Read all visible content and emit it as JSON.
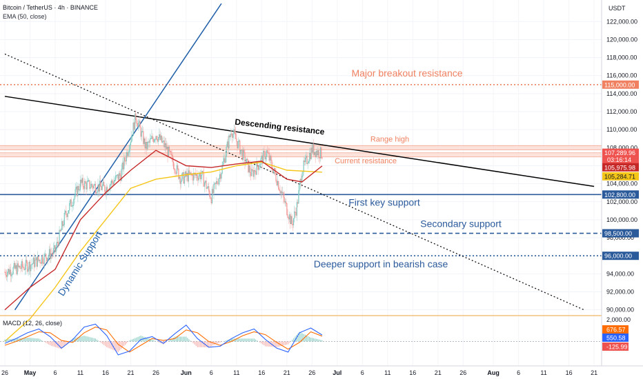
{
  "header": {
    "symbol_line": "Bitcoin / TetherUS · 4h · BINANCE",
    "indicator_line": "EMA (50, close)",
    "currency": "USDT"
  },
  "macd_label": "MACD (12, 26, close)",
  "colors": {
    "price_up": "#26a69a",
    "price_down": "#ef5350",
    "ema_fast": "#d32f2f",
    "ema_slow": "#f5c518",
    "resistance": "#f08060",
    "support": "#2b5a9b",
    "trend_blue": "#1f5fa8",
    "descending": "#000000",
    "macd_line": "#2962ff",
    "signal_line": "#ff6d00"
  },
  "chart_data": {
    "type": "line",
    "title": "Bitcoin / TetherUS · 4h · BINANCE",
    "y_unit": "USDT",
    "ylim": [
      89000,
      123500
    ],
    "y_ticks": [
      90000,
      92000,
      94000,
      96000,
      98000,
      100000,
      102000,
      104000,
      106000,
      108000,
      110000,
      112000,
      114000,
      116000,
      118000,
      120000,
      122000
    ],
    "y_tick_labels": [
      "90,000.00",
      "92,000.00",
      "94,000.00",
      "96,000.00",
      "98,000.00",
      "100,000.00",
      "102,000.00",
      "104,000.00",
      "106,000.00",
      "108,000.00",
      "110,000.00",
      "112,000.00",
      "114,000.00",
      "116,000.00",
      "118,000.00",
      "120,000.00",
      "122,000.00"
    ],
    "x_labels": [
      "26",
      "May",
      "6",
      "11",
      "16",
      "21",
      "26",
      "Jun",
      "6",
      "11",
      "16",
      "21",
      "26",
      "Jul",
      "6",
      "11",
      "16",
      "21",
      "26",
      "Aug",
      "6",
      "11",
      "16",
      "21"
    ],
    "price_series": {
      "name": "BTCUSDT",
      "points": [
        [
          "Apr 26",
          94200
        ],
        [
          "May 1",
          95000
        ],
        [
          "May 6",
          96500
        ],
        [
          "May 8",
          100500
        ],
        [
          "May 11",
          104000
        ],
        [
          "May 16",
          103500
        ],
        [
          "May 19",
          105000
        ],
        [
          "May 21",
          109000
        ],
        [
          "May 22",
          111500
        ],
        [
          "May 24",
          108000
        ],
        [
          "May 26",
          109500
        ],
        [
          "May 28",
          108000
        ],
        [
          "May 31",
          104500
        ],
        [
          "Jun 1",
          104800
        ],
        [
          "Jun 4",
          105000
        ],
        [
          "Jun 6",
          102500
        ],
        [
          "Jun 8",
          105500
        ],
        [
          "Jun 10",
          110000
        ],
        [
          "Jun 12",
          107500
        ],
        [
          "Jun 14",
          105000
        ],
        [
          "Jun 17",
          107500
        ],
        [
          "Jun 19",
          104500
        ],
        [
          "Jun 22",
          99500
        ],
        [
          "Jun 23",
          101500
        ],
        [
          "Jun 24",
          105500
        ],
        [
          "Jun 26",
          107800
        ],
        [
          "Jun 28",
          107289.96
        ]
      ]
    },
    "ema_fast_series": {
      "points": [
        [
          "Apr 26",
          90000
        ],
        [
          "May 1",
          92500
        ],
        [
          "May 6",
          94500
        ],
        [
          "May 11",
          100000
        ],
        [
          "May 16",
          103000
        ],
        [
          "May 21",
          105500
        ],
        [
          "May 26",
          107700
        ],
        [
          "Jun 1",
          106000
        ],
        [
          "Jun 6",
          105800
        ],
        [
          "Jun 11",
          106200
        ],
        [
          "Jun 16",
          106500
        ],
        [
          "Jun 21",
          104500
        ],
        [
          "Jun 24",
          104200
        ],
        [
          "Jun 28",
          105975.98
        ]
      ]
    },
    "ema_slow_series": {
      "name": "EMA (50, close)",
      "points": [
        [
          "Apr 26",
          86500
        ],
        [
          "May 1",
          89000
        ],
        [
          "May 6",
          92500
        ],
        [
          "May 11",
          96500
        ],
        [
          "May 16",
          100000
        ],
        [
          "May 21",
          103500
        ],
        [
          "May 26",
          104500
        ],
        [
          "Jun 1",
          105000
        ],
        [
          "Jun 6",
          105300
        ],
        [
          "Jun 11",
          106000
        ],
        [
          "Jun 16",
          106400
        ],
        [
          "Jun 21",
          105500
        ],
        [
          "Jun 28",
          105284.71
        ]
      ]
    },
    "price_labels": [
      {
        "value": "107,289.96",
        "sub": "03:16:14"
      },
      {
        "value": "105,975.98"
      },
      {
        "value": "105,284.71"
      }
    ],
    "horizontal_levels": [
      {
        "label": "Major breakout resistance",
        "price": 115000,
        "price_label": "115,000.00",
        "style": "dotted",
        "color": "#f08060"
      },
      {
        "label": "Range high",
        "price": 108000,
        "style": "band",
        "color": "#f08060"
      },
      {
        "label": "Current resistance",
        "price": 107200,
        "style": "band",
        "color": "#f08060"
      },
      {
        "label": "First key support",
        "price": 102800,
        "price_label": "102,800.00",
        "style": "solid",
        "color": "#2b5a9b"
      },
      {
        "label": "Secondary support",
        "price": 98500,
        "price_label": "98,500.00",
        "style": "dashed",
        "color": "#2b5a9b"
      },
      {
        "label": "Deeper support in bearish case",
        "price": 96000,
        "price_label": "96,000.00",
        "style": "dotted",
        "color": "#2b5a9b"
      }
    ],
    "trend_lines": [
      {
        "label": "Descending resistance",
        "from": [
          "Apr 26",
          113700
        ],
        "to": [
          "Aug 21",
          103700
        ],
        "style": "solid"
      },
      {
        "label": "Dynamic Support",
        "from": [
          "Apr 28",
          90000
        ],
        "to": [
          "Jun 8",
          124000
        ],
        "style": "solid"
      },
      {
        "label": "",
        "from": [
          "Apr 26",
          118400
        ],
        "to": [
          "Aug 19",
          90000
        ],
        "style": "dotted"
      }
    ],
    "macd": {
      "title": "MACD (12, 26, close)",
      "ylim": [
        -2400,
        2400
      ],
      "y_tick_labels": [
        "2,000.00"
      ],
      "value_labels": [
        "676.57",
        "550.58",
        "-125.99"
      ],
      "macd_line": [
        -200,
        300,
        900,
        1300,
        500,
        -700,
        200,
        1500,
        1800,
        600,
        -1400,
        -1000,
        200,
        500,
        -200,
        800,
        1700,
        300,
        -600,
        -500,
        300,
        900,
        1300,
        200,
        -700,
        -1100,
        900,
        1400,
        677
      ],
      "signal_line": [
        -400,
        0,
        500,
        1000,
        900,
        100,
        -100,
        900,
        1500,
        1200,
        -300,
        -1100,
        -400,
        300,
        100,
        300,
        1200,
        900,
        0,
        -400,
        0,
        600,
        1000,
        700,
        -100,
        -800,
        -100,
        1000,
        551
      ]
    }
  }
}
